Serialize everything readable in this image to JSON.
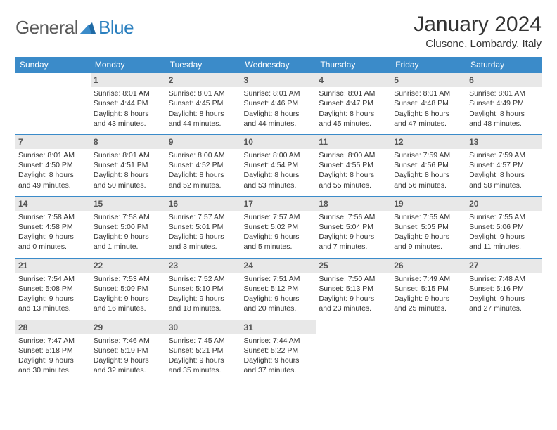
{
  "brand": {
    "part1": "General",
    "part2": "Blue"
  },
  "title": "January 2024",
  "location": "Clusone, Lombardy, Italy",
  "colors": {
    "header_bg": "#3b8bc9",
    "header_text": "#ffffff",
    "daynum_bg": "#e8e8e8",
    "border": "#3b8bc9",
    "logo_gray": "#5a5a5a",
    "logo_blue": "#2a7fbf"
  },
  "day_headers": [
    "Sunday",
    "Monday",
    "Tuesday",
    "Wednesday",
    "Thursday",
    "Friday",
    "Saturday"
  ],
  "weeks": [
    [
      {
        "n": "",
        "lines": []
      },
      {
        "n": "1",
        "lines": [
          "Sunrise: 8:01 AM",
          "Sunset: 4:44 PM",
          "Daylight: 8 hours",
          "and 43 minutes."
        ]
      },
      {
        "n": "2",
        "lines": [
          "Sunrise: 8:01 AM",
          "Sunset: 4:45 PM",
          "Daylight: 8 hours",
          "and 44 minutes."
        ]
      },
      {
        "n": "3",
        "lines": [
          "Sunrise: 8:01 AM",
          "Sunset: 4:46 PM",
          "Daylight: 8 hours",
          "and 44 minutes."
        ]
      },
      {
        "n": "4",
        "lines": [
          "Sunrise: 8:01 AM",
          "Sunset: 4:47 PM",
          "Daylight: 8 hours",
          "and 45 minutes."
        ]
      },
      {
        "n": "5",
        "lines": [
          "Sunrise: 8:01 AM",
          "Sunset: 4:48 PM",
          "Daylight: 8 hours",
          "and 47 minutes."
        ]
      },
      {
        "n": "6",
        "lines": [
          "Sunrise: 8:01 AM",
          "Sunset: 4:49 PM",
          "Daylight: 8 hours",
          "and 48 minutes."
        ]
      }
    ],
    [
      {
        "n": "7",
        "lines": [
          "Sunrise: 8:01 AM",
          "Sunset: 4:50 PM",
          "Daylight: 8 hours",
          "and 49 minutes."
        ]
      },
      {
        "n": "8",
        "lines": [
          "Sunrise: 8:01 AM",
          "Sunset: 4:51 PM",
          "Daylight: 8 hours",
          "and 50 minutes."
        ]
      },
      {
        "n": "9",
        "lines": [
          "Sunrise: 8:00 AM",
          "Sunset: 4:52 PM",
          "Daylight: 8 hours",
          "and 52 minutes."
        ]
      },
      {
        "n": "10",
        "lines": [
          "Sunrise: 8:00 AM",
          "Sunset: 4:54 PM",
          "Daylight: 8 hours",
          "and 53 minutes."
        ]
      },
      {
        "n": "11",
        "lines": [
          "Sunrise: 8:00 AM",
          "Sunset: 4:55 PM",
          "Daylight: 8 hours",
          "and 55 minutes."
        ]
      },
      {
        "n": "12",
        "lines": [
          "Sunrise: 7:59 AM",
          "Sunset: 4:56 PM",
          "Daylight: 8 hours",
          "and 56 minutes."
        ]
      },
      {
        "n": "13",
        "lines": [
          "Sunrise: 7:59 AM",
          "Sunset: 4:57 PM",
          "Daylight: 8 hours",
          "and 58 minutes."
        ]
      }
    ],
    [
      {
        "n": "14",
        "lines": [
          "Sunrise: 7:58 AM",
          "Sunset: 4:58 PM",
          "Daylight: 9 hours",
          "and 0 minutes."
        ]
      },
      {
        "n": "15",
        "lines": [
          "Sunrise: 7:58 AM",
          "Sunset: 5:00 PM",
          "Daylight: 9 hours",
          "and 1 minute."
        ]
      },
      {
        "n": "16",
        "lines": [
          "Sunrise: 7:57 AM",
          "Sunset: 5:01 PM",
          "Daylight: 9 hours",
          "and 3 minutes."
        ]
      },
      {
        "n": "17",
        "lines": [
          "Sunrise: 7:57 AM",
          "Sunset: 5:02 PM",
          "Daylight: 9 hours",
          "and 5 minutes."
        ]
      },
      {
        "n": "18",
        "lines": [
          "Sunrise: 7:56 AM",
          "Sunset: 5:04 PM",
          "Daylight: 9 hours",
          "and 7 minutes."
        ]
      },
      {
        "n": "19",
        "lines": [
          "Sunrise: 7:55 AM",
          "Sunset: 5:05 PM",
          "Daylight: 9 hours",
          "and 9 minutes."
        ]
      },
      {
        "n": "20",
        "lines": [
          "Sunrise: 7:55 AM",
          "Sunset: 5:06 PM",
          "Daylight: 9 hours",
          "and 11 minutes."
        ]
      }
    ],
    [
      {
        "n": "21",
        "lines": [
          "Sunrise: 7:54 AM",
          "Sunset: 5:08 PM",
          "Daylight: 9 hours",
          "and 13 minutes."
        ]
      },
      {
        "n": "22",
        "lines": [
          "Sunrise: 7:53 AM",
          "Sunset: 5:09 PM",
          "Daylight: 9 hours",
          "and 16 minutes."
        ]
      },
      {
        "n": "23",
        "lines": [
          "Sunrise: 7:52 AM",
          "Sunset: 5:10 PM",
          "Daylight: 9 hours",
          "and 18 minutes."
        ]
      },
      {
        "n": "24",
        "lines": [
          "Sunrise: 7:51 AM",
          "Sunset: 5:12 PM",
          "Daylight: 9 hours",
          "and 20 minutes."
        ]
      },
      {
        "n": "25",
        "lines": [
          "Sunrise: 7:50 AM",
          "Sunset: 5:13 PM",
          "Daylight: 9 hours",
          "and 23 minutes."
        ]
      },
      {
        "n": "26",
        "lines": [
          "Sunrise: 7:49 AM",
          "Sunset: 5:15 PM",
          "Daylight: 9 hours",
          "and 25 minutes."
        ]
      },
      {
        "n": "27",
        "lines": [
          "Sunrise: 7:48 AM",
          "Sunset: 5:16 PM",
          "Daylight: 9 hours",
          "and 27 minutes."
        ]
      }
    ],
    [
      {
        "n": "28",
        "lines": [
          "Sunrise: 7:47 AM",
          "Sunset: 5:18 PM",
          "Daylight: 9 hours",
          "and 30 minutes."
        ]
      },
      {
        "n": "29",
        "lines": [
          "Sunrise: 7:46 AM",
          "Sunset: 5:19 PM",
          "Daylight: 9 hours",
          "and 32 minutes."
        ]
      },
      {
        "n": "30",
        "lines": [
          "Sunrise: 7:45 AM",
          "Sunset: 5:21 PM",
          "Daylight: 9 hours",
          "and 35 minutes."
        ]
      },
      {
        "n": "31",
        "lines": [
          "Sunrise: 7:44 AM",
          "Sunset: 5:22 PM",
          "Daylight: 9 hours",
          "and 37 minutes."
        ]
      },
      {
        "n": "",
        "lines": []
      },
      {
        "n": "",
        "lines": []
      },
      {
        "n": "",
        "lines": []
      }
    ]
  ]
}
